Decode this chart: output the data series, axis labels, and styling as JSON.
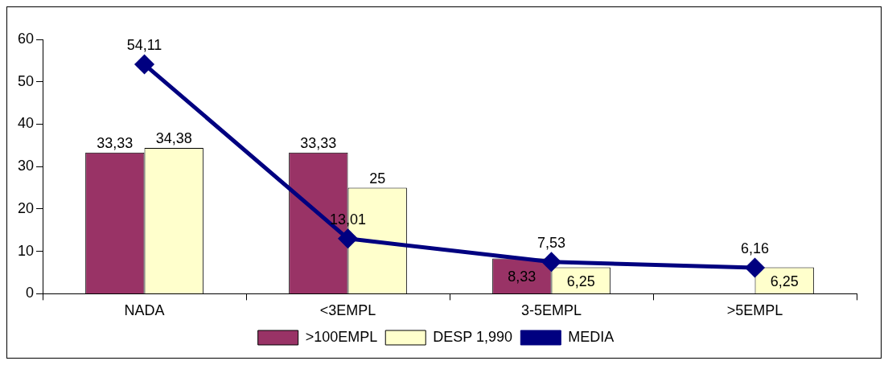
{
  "chart_data": {
    "type": "bar",
    "categories": [
      "NADA",
      "<3EMPL",
      "3-5EMPL",
      ">5EMPL"
    ],
    "series": [
      {
        "name": ">100EMPL",
        "color": "#993366",
        "values": [
          33.33,
          33.33,
          8.33,
          null
        ],
        "value_labels": [
          "33,33",
          "33,33",
          "8,33",
          null
        ]
      },
      {
        "name": "DESP 1,990",
        "type": "bar",
        "color": "#ffffcc",
        "values": [
          34.38,
          25,
          6.25,
          6.25
        ],
        "value_labels": [
          "34,38",
          "25",
          "6,25",
          "6,25"
        ]
      },
      {
        "name": "MEDIA",
        "type": "line",
        "color": "#000080",
        "marker": "diamond",
        "values": [
          54.11,
          13.01,
          7.53,
          6.16
        ],
        "value_labels": [
          "54,11",
          "13,01",
          "7,53",
          "6,16"
        ]
      }
    ],
    "ylim": [
      0,
      60
    ],
    "yticks": [
      0,
      10,
      20,
      30,
      40,
      50,
      60
    ],
    "grid": false,
    "legend": "bottom"
  }
}
